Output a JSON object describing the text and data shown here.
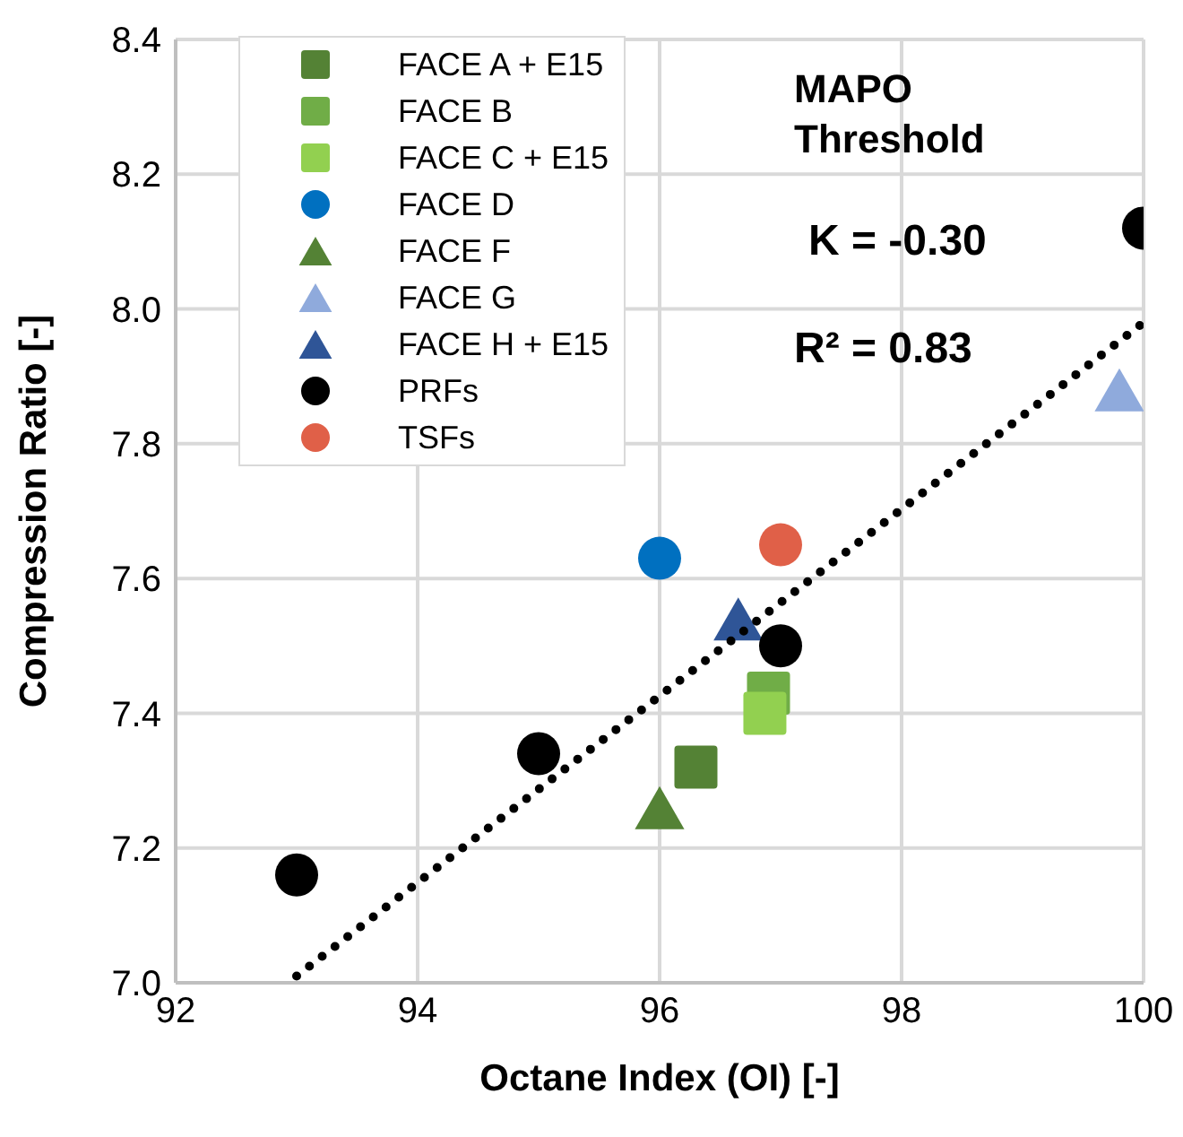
{
  "chart_data": {
    "type": "scatter",
    "xlabel": "Octane Index (OI) [-]",
    "ylabel": "Compression Ratio [-]",
    "xlim": [
      92,
      100
    ],
    "xticks": [
      92,
      94,
      96,
      98,
      100
    ],
    "ylim": [
      7.0,
      8.4
    ],
    "yticks": [
      {
        "value": 7.0,
        "label": "7.0"
      },
      {
        "value": 7.2,
        "label": "7.2"
      },
      {
        "value": 7.4,
        "label": "7.4"
      },
      {
        "value": 7.6,
        "label": "7.6"
      },
      {
        "value": 7.8,
        "label": "7.8"
      },
      {
        "value": 8.0,
        "label": "8.0"
      },
      {
        "value": 8.2,
        "label": "8.2"
      },
      {
        "value": 8.4,
        "label": "8.4"
      }
    ],
    "grid": true,
    "legend": "top left",
    "annotations": [
      "MAPO Threshold",
      "K = -0.30",
      "R² = 0.83"
    ],
    "series": [
      {
        "name": "FACE A + E15",
        "color": "#548235",
        "marker": "square",
        "x": [
          96.3
        ],
        "values": [
          7.32
        ]
      },
      {
        "name": "FACE B",
        "color": "#70ad47",
        "marker": "square",
        "x": [
          96.9
        ],
        "values": [
          7.43
        ]
      },
      {
        "name": "FACE C + E15",
        "color": "#92d050",
        "marker": "square",
        "x": [
          96.87
        ],
        "values": [
          7.4
        ]
      },
      {
        "name": "FACE D",
        "color": "#0070c0",
        "marker": "circle",
        "x": [
          96.0
        ],
        "values": [
          7.63
        ]
      },
      {
        "name": "FACE F",
        "color": "#548235",
        "marker": "triangle",
        "x": [
          96.0
        ],
        "values": [
          7.26
        ]
      },
      {
        "name": "FACE G",
        "color": "#8faadc",
        "marker": "triangle",
        "x": [
          99.8
        ],
        "values": [
          7.88
        ]
      },
      {
        "name": "FACE H + E15",
        "color": "#2f5597",
        "marker": "triangle",
        "x": [
          96.65
        ],
        "values": [
          7.54
        ]
      },
      {
        "name": "PRFs",
        "color": "#000000",
        "marker": "circle",
        "x": [
          93.0,
          95.0,
          97.0,
          100.0
        ],
        "values": [
          7.16,
          7.34,
          7.5,
          8.12
        ]
      },
      {
        "name": "TSFs",
        "color": "#e06048",
        "marker": "circle",
        "x": [
          97.0
        ],
        "values": [
          7.65
        ]
      },
      {
        "type": "line",
        "color": "#000000",
        "line_style": "dotted",
        "marker": "none",
        "x": [
          93.0,
          100.0
        ],
        "values": [
          7.01,
          7.98
        ]
      }
    ]
  }
}
